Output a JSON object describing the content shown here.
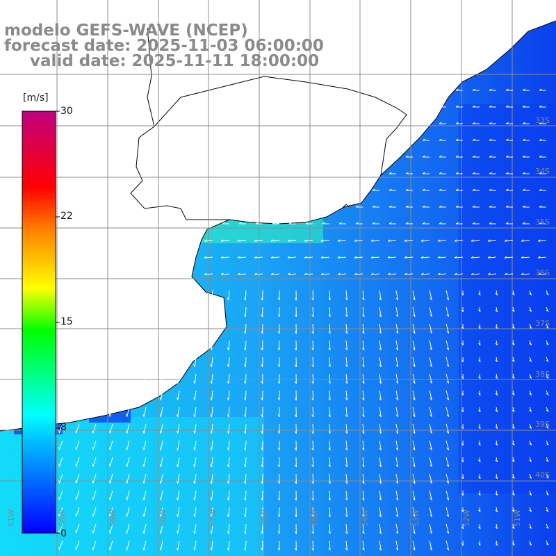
{
  "title": {
    "line1": "modelo GEFS-WAVE (NCEP)",
    "line2": "forecast date: 2025-11-03 06:00:00",
    "line3": "valid date: 2025-11-11 18:00:00"
  },
  "colorbar": {
    "unit": "[m/s]",
    "ticks": [
      "30",
      "22",
      "15",
      "8",
      "0"
    ],
    "stops": [
      "#0000ff",
      "#00c0ff",
      "#00ffff",
      "#00ff00",
      "#ffff00",
      "#ff8000",
      "#ff0000",
      "#c00080"
    ]
  },
  "lat_labels": [
    "33S",
    "34S",
    "35S",
    "36S",
    "37S",
    "38S",
    "39S",
    "40S"
  ],
  "lon_labels": [
    "61W",
    "60W",
    "59W",
    "58W",
    "57W",
    "56W",
    "55W",
    "54W",
    "53W",
    "52W",
    "51W"
  ],
  "colors": {
    "ocean_deep": "#0a3cf0",
    "ocean_mid": "#1494f5",
    "ocean_light": "#14e4f8",
    "land": "#ffffff",
    "coast": "#000000",
    "grid": "#8c8c8c"
  }
}
